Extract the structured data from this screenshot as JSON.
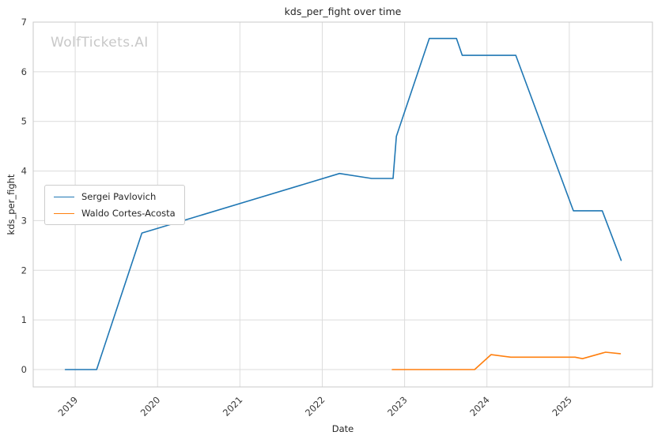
{
  "watermark": "WolfTickets.AI",
  "chart_data": {
    "type": "line",
    "title": "kds_per_fight over time",
    "xlabel": "Date",
    "ylabel": "kds_per_fight",
    "xlim": [
      2018.49,
      2026.01
    ],
    "ylim": [
      -0.35,
      7.0
    ],
    "grid": true,
    "grid_color": "#dcdcdc",
    "spine_color": "#c9c9c9",
    "tick_color": "#3a3a3a",
    "legend_position": "center-left",
    "xticks": {
      "values": [
        2019,
        2020,
        2021,
        2022,
        2023,
        2024,
        2025
      ],
      "labels": [
        "2019",
        "2020",
        "2021",
        "2022",
        "2023",
        "2024",
        "2025"
      ]
    },
    "yticks": {
      "values": [
        0,
        1,
        2,
        3,
        4,
        5,
        6,
        7
      ],
      "labels": [
        "0",
        "1",
        "2",
        "3",
        "4",
        "5",
        "6",
        "7"
      ]
    },
    "series": [
      {
        "name": "Sergei Pavlovich",
        "color": "#1f77b4",
        "points": [
          [
            2018.88,
            0.0
          ],
          [
            2019.26,
            0.0
          ],
          [
            2019.81,
            2.75
          ],
          [
            2019.97,
            2.83
          ],
          [
            2022.21,
            3.95
          ],
          [
            2022.6,
            3.85
          ],
          [
            2022.86,
            3.85
          ],
          [
            2022.9,
            4.7
          ],
          [
            2023.3,
            6.67
          ],
          [
            2023.63,
            6.67
          ],
          [
            2023.7,
            6.33
          ],
          [
            2024.35,
            6.33
          ],
          [
            2025.05,
            3.2
          ],
          [
            2025.4,
            3.2
          ],
          [
            2025.63,
            2.2
          ]
        ]
      },
      {
        "name": "Waldo Cortes-Acosta",
        "color": "#ff7f0e",
        "points": [
          [
            2022.85,
            0.0
          ],
          [
            2023.85,
            0.0
          ],
          [
            2024.05,
            0.3
          ],
          [
            2024.29,
            0.25
          ],
          [
            2025.07,
            0.25
          ],
          [
            2025.16,
            0.22
          ],
          [
            2025.44,
            0.35
          ],
          [
            2025.62,
            0.32
          ]
        ]
      }
    ]
  }
}
